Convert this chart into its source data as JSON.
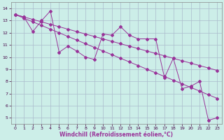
{
  "xlabel": "Windchill (Refroidissement éolien,°C)",
  "xlim": [
    -0.5,
    23.5
  ],
  "ylim": [
    4.5,
    14.5
  ],
  "yticks": [
    5,
    6,
    7,
    8,
    9,
    10,
    11,
    12,
    13,
    14
  ],
  "xticks": [
    0,
    1,
    2,
    3,
    4,
    5,
    6,
    7,
    8,
    9,
    10,
    11,
    12,
    13,
    14,
    15,
    16,
    17,
    18,
    19,
    20,
    21,
    22,
    23
  ],
  "line_color": "#993399",
  "bg_color": "#cceee8",
  "grid_color": "#aabbcc",
  "series_straight1": {
    "x": [
      0,
      1,
      2,
      3,
      4,
      5,
      6,
      7,
      8,
      9,
      10,
      11,
      12,
      13,
      14,
      15,
      16,
      17,
      18,
      19,
      20,
      21,
      22,
      23
    ],
    "y": [
      13.5,
      13.3,
      13.1,
      12.9,
      12.7,
      12.5,
      12.3,
      12.1,
      11.9,
      11.7,
      11.5,
      11.3,
      11.1,
      10.9,
      10.7,
      10.5,
      10.3,
      10.1,
      9.9,
      9.7,
      9.5,
      9.3,
      9.1,
      8.9
    ]
  },
  "series_straight2": {
    "x": [
      0,
      1,
      2,
      3,
      4,
      5,
      6,
      7,
      8,
      9,
      10,
      11,
      12,
      13,
      14,
      15,
      16,
      17,
      18,
      19,
      20,
      21,
      22,
      23
    ],
    "y": [
      13.5,
      13.2,
      12.9,
      12.6,
      12.3,
      12.0,
      11.7,
      11.4,
      11.1,
      10.8,
      10.5,
      10.2,
      9.9,
      9.6,
      9.3,
      9.0,
      8.7,
      8.4,
      8.1,
      7.8,
      7.5,
      7.2,
      6.9,
      6.6
    ]
  },
  "series_zigzag": {
    "x": [
      0,
      1,
      2,
      3,
      4,
      5,
      6,
      7,
      8,
      9,
      10,
      11,
      12,
      13,
      14,
      15,
      16,
      17,
      18,
      19,
      20,
      21,
      22,
      23
    ],
    "y": [
      13.5,
      13.3,
      12.1,
      13.0,
      13.8,
      10.4,
      10.9,
      10.5,
      10.0,
      9.8,
      11.9,
      11.8,
      12.5,
      11.8,
      11.5,
      11.5,
      11.5,
      8.3,
      9.9,
      7.4,
      7.6,
      8.0,
      4.8,
      5.0
    ]
  }
}
